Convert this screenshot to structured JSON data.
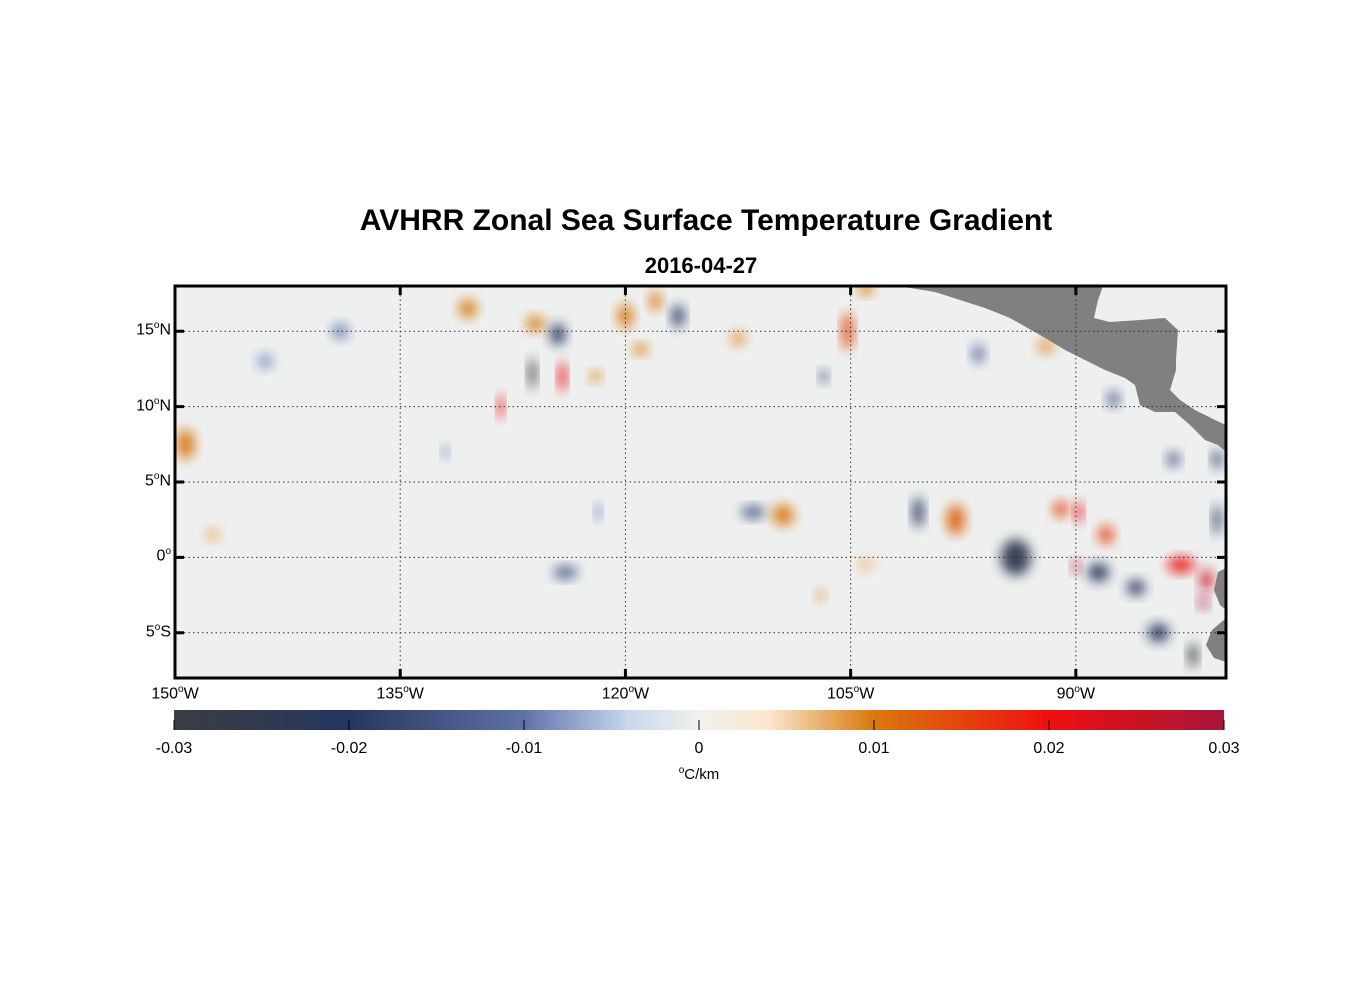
{
  "title": "AVHRR Zonal Sea Surface Temperature Gradient",
  "subtitle": "2016-04-27",
  "colors": {
    "land": "#808080",
    "frame": "#000000",
    "grid": "#333333",
    "ocean_background": "#eef0f0"
  },
  "map": {
    "projection": "equirectangular",
    "lon_range": [
      -150,
      -80
    ],
    "lat_range": [
      -8,
      18
    ],
    "lon_ticks": [
      {
        "lon": -150,
        "label_num": "150",
        "label_sup": "o",
        "label_dir": "W"
      },
      {
        "lon": -135,
        "label_num": "135",
        "label_sup": "o",
        "label_dir": "W"
      },
      {
        "lon": -120,
        "label_num": "120",
        "label_sup": "o",
        "label_dir": "W"
      },
      {
        "lon": -105,
        "label_num": "105",
        "label_sup": "o",
        "label_dir": "W"
      },
      {
        "lon": -90,
        "label_num": "90",
        "label_sup": "o",
        "label_dir": "W"
      }
    ],
    "lat_ticks": [
      {
        "lat": 15,
        "label_num": "15",
        "label_sup": "o",
        "label_dir": "N"
      },
      {
        "lat": 10,
        "label_num": "10",
        "label_sup": "o",
        "label_dir": "N"
      },
      {
        "lat": 5,
        "label_num": "5",
        "label_sup": "o",
        "label_dir": "N"
      },
      {
        "lat": 0,
        "label_num": "0",
        "label_sup": "o",
        "label_dir": ""
      },
      {
        "lat": -5,
        "label_num": "5",
        "label_sup": "o",
        "label_dir": "S"
      }
    ],
    "gradient_features": [
      {
        "lon": -149.3,
        "lat": 7.5,
        "value": 0.01,
        "w": 1.2,
        "h": 2.0
      },
      {
        "lon": -126.2,
        "lat": 12.2,
        "value": -0.03,
        "w": 0.5,
        "h": 2.0
      },
      {
        "lon": -124.2,
        "lat": 12.0,
        "value": 0.02,
        "w": 0.5,
        "h": 2.0
      },
      {
        "lon": -128.3,
        "lat": 10.0,
        "value": 0.02,
        "w": 0.4,
        "h": 1.6
      },
      {
        "lon": -130.5,
        "lat": 16.5,
        "value": 0.01,
        "w": 1.2,
        "h": 1.2
      },
      {
        "lon": -126.0,
        "lat": 15.5,
        "value": 0.01,
        "w": 1.2,
        "h": 1.0
      },
      {
        "lon": -124.5,
        "lat": 14.8,
        "value": -0.02,
        "w": 1.0,
        "h": 1.4
      },
      {
        "lon": -120.0,
        "lat": 16.0,
        "value": 0.01,
        "w": 1.0,
        "h": 1.6
      },
      {
        "lon": -118.0,
        "lat": 17.0,
        "value": 0.01,
        "w": 0.8,
        "h": 1.2
      },
      {
        "lon": -116.5,
        "lat": 16.0,
        "value": -0.02,
        "w": 0.8,
        "h": 1.5
      },
      {
        "lon": -105.2,
        "lat": 15.0,
        "value": 0.015,
        "w": 0.7,
        "h": 2.5
      },
      {
        "lon": -104.0,
        "lat": 17.8,
        "value": 0.01,
        "w": 1.0,
        "h": 0.8
      },
      {
        "lon": -106.8,
        "lat": 12.0,
        "value": -0.02,
        "w": 0.5,
        "h": 0.8
      },
      {
        "lon": -111.5,
        "lat": 3.0,
        "value": -0.015,
        "w": 1.6,
        "h": 0.8
      },
      {
        "lon": -109.5,
        "lat": 2.8,
        "value": 0.01,
        "w": 1.4,
        "h": 1.4
      },
      {
        "lon": -124.0,
        "lat": -1.0,
        "value": -0.015,
        "w": 1.6,
        "h": 0.8
      },
      {
        "lon": -98.0,
        "lat": 2.5,
        "value": 0.012,
        "w": 1.2,
        "h": 2.0
      },
      {
        "lon": -100.5,
        "lat": 3.0,
        "value": -0.02,
        "w": 0.7,
        "h": 2.0
      },
      {
        "lon": -94.0,
        "lat": 0.0,
        "value": -0.025,
        "w": 2.0,
        "h": 2.4
      },
      {
        "lon": -91.0,
        "lat": 3.2,
        "value": 0.015,
        "w": 1.0,
        "h": 1.0
      },
      {
        "lon": -89.8,
        "lat": 3.0,
        "value": 0.02,
        "w": 0.5,
        "h": 1.4
      },
      {
        "lon": -88.0,
        "lat": 1.5,
        "value": 0.015,
        "w": 1.0,
        "h": 1.2
      },
      {
        "lon": -90.0,
        "lat": -0.6,
        "value": 0.025,
        "w": 0.5,
        "h": 0.8
      },
      {
        "lon": -88.5,
        "lat": -1.0,
        "value": -0.02,
        "w": 1.4,
        "h": 1.2
      },
      {
        "lon": -86.0,
        "lat": -2.0,
        "value": -0.02,
        "w": 1.2,
        "h": 1.0
      },
      {
        "lon": -83.0,
        "lat": -0.5,
        "value": 0.02,
        "w": 1.8,
        "h": 1.0
      },
      {
        "lon": -81.3,
        "lat": -1.5,
        "value": 0.025,
        "w": 0.8,
        "h": 1.4
      },
      {
        "lon": -81.5,
        "lat": -3.0,
        "value": 0.03,
        "w": 0.6,
        "h": 0.8
      },
      {
        "lon": -84.5,
        "lat": -5.0,
        "value": -0.02,
        "w": 1.4,
        "h": 1.2
      },
      {
        "lon": -82.2,
        "lat": -6.5,
        "value": -0.03,
        "w": 0.6,
        "h": 1.6
      },
      {
        "lon": -80.6,
        "lat": 2.5,
        "value": -0.02,
        "w": 0.5,
        "h": 2.0
      },
      {
        "lon": -80.6,
        "lat": 6.5,
        "value": -0.02,
        "w": 0.6,
        "h": 1.2
      },
      {
        "lon": -83.5,
        "lat": 6.5,
        "value": -0.015,
        "w": 0.8,
        "h": 1.0
      },
      {
        "lon": -87.5,
        "lat": 10.5,
        "value": -0.015,
        "w": 0.8,
        "h": 1.0
      },
      {
        "lon": -92.0,
        "lat": 14.0,
        "value": 0.008,
        "w": 1.2,
        "h": 1.0
      },
      {
        "lon": -96.5,
        "lat": 13.5,
        "value": -0.012,
        "w": 0.8,
        "h": 1.2
      },
      {
        "lon": -139.0,
        "lat": 15.0,
        "value": -0.01,
        "w": 1.0,
        "h": 1.0
      },
      {
        "lon": -144.0,
        "lat": 13.0,
        "value": -0.008,
        "w": 1.0,
        "h": 1.0
      },
      {
        "lon": -119.0,
        "lat": 13.8,
        "value": 0.01,
        "w": 1.0,
        "h": 0.7
      },
      {
        "lon": -112.5,
        "lat": 14.5,
        "value": 0.008,
        "w": 1.0,
        "h": 1.0
      },
      {
        "lon": -122.0,
        "lat": 12.0,
        "value": 0.01,
        "w": 0.7,
        "h": 0.7
      },
      {
        "lon": -132.0,
        "lat": 7.0,
        "value": -0.012,
        "w": 0.4,
        "h": 0.8
      },
      {
        "lon": -121.8,
        "lat": 3.0,
        "value": -0.012,
        "w": 0.4,
        "h": 1.0
      },
      {
        "lon": -147.5,
        "lat": 1.5,
        "value": 0.007,
        "w": 1.0,
        "h": 0.8
      },
      {
        "lon": -104.0,
        "lat": -0.5,
        "value": 0.006,
        "w": 1.0,
        "h": 1.0
      },
      {
        "lon": -107.0,
        "lat": -2.5,
        "value": 0.008,
        "w": 0.6,
        "h": 0.8
      }
    ]
  },
  "colorbar": {
    "min": -0.03,
    "max": 0.03,
    "tick_labels": [
      "-0.03",
      "-0.02",
      "-0.01",
      "0",
      "0.01",
      "0.02",
      "0.03"
    ],
    "tick_values": [
      -0.03,
      -0.02,
      -0.01,
      0,
      0.01,
      0.02,
      0.03
    ],
    "unit_sup": "o",
    "unit_text": "C/km",
    "color_stops": [
      {
        "value": -0.03,
        "color": "#3a3d42"
      },
      {
        "value": -0.02,
        "color": "#26365f"
      },
      {
        "value": -0.01,
        "color": "#5f72a6"
      },
      {
        "value": -0.004,
        "color": "#c9d8ef"
      },
      {
        "value": 0,
        "color": "#f1f1ec"
      },
      {
        "value": 0.004,
        "color": "#fbe7cd"
      },
      {
        "value": 0.01,
        "color": "#d9780e"
      },
      {
        "value": 0.02,
        "color": "#ef0f0f"
      },
      {
        "value": 0.03,
        "color": "#a8153a"
      }
    ]
  }
}
